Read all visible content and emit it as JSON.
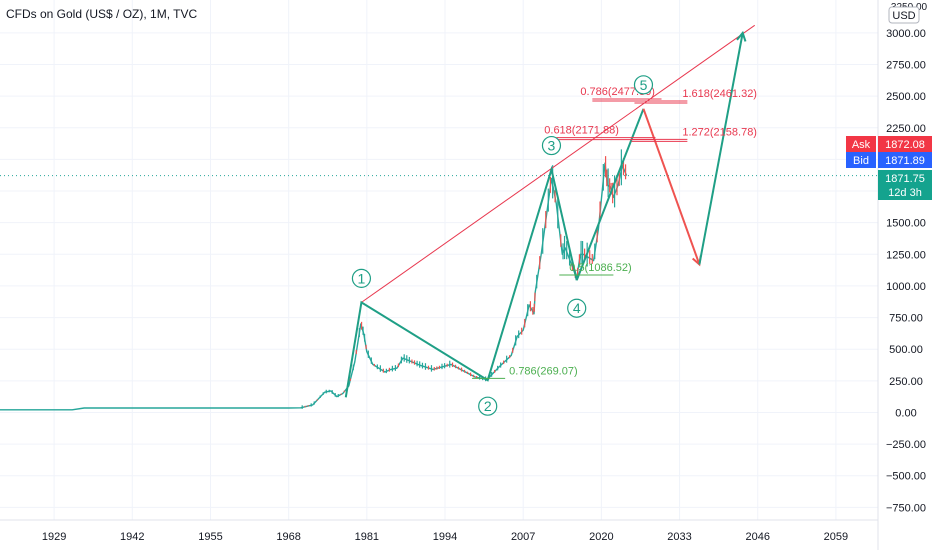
{
  "header": {
    "title": "CFDs on Gold (US$ / OZ), 1M, TVC",
    "currency": "USD",
    "top_tick": "3250.00"
  },
  "colors": {
    "up": "#26a69a",
    "down": "#ef5350",
    "wave_line": "#1f9f86",
    "fib_red": "#e8384f",
    "fib_green": "#4caf50",
    "ask_bg": "#f23645",
    "bid_bg": "#2962ff",
    "price_bg": "#14a38e",
    "axis_text": "#131722",
    "grid": "#f0f3fa"
  },
  "price_labels": {
    "ask_label": "Ask",
    "ask_value": "1872.08",
    "bid_label": "Bid",
    "bid_value": "1871.89",
    "last_value": "1871.75",
    "countdown": "12d 3h"
  },
  "chart_data": {
    "type": "line",
    "symbol": "CFDs on Gold (US$ / OZ)",
    "timeframe": "1M",
    "xlim": [
      1920,
      2066
    ],
    "ylim": [
      -850,
      3260
    ],
    "x_ticks": [
      "1929",
      "1942",
      "1955",
      "1968",
      "1981",
      "1994",
      "2007",
      "2020",
      "2033",
      "2046",
      "2059"
    ],
    "x_tick_values": [
      1929,
      1942,
      1955,
      1968,
      1981,
      1994,
      2007,
      2020,
      2033,
      2046,
      2059
    ],
    "y_ticks": [
      3000,
      2750,
      2500,
      2250,
      2000,
      1750,
      1500,
      1250,
      1000,
      750,
      500,
      250,
      0,
      -250,
      -500,
      -750
    ],
    "y_tick_labels": [
      "3000.00",
      "2750.00",
      "2500.00",
      "2250.00",
      "2000.00",
      "1750.00",
      "1500.00",
      "1250.00",
      "1000.00",
      "750.00",
      "500.00",
      "250.00",
      "0.00",
      "−250.00",
      "−500.00",
      "−750.00"
    ],
    "last_price": 1871.75,
    "price_series": {
      "x": [
        1920,
        1932,
        1934,
        1968,
        1970,
        1972,
        1974,
        1975,
        1976,
        1977,
        1978,
        1979,
        1980,
        1980.5,
        1981,
        1982,
        1984,
        1985,
        1986,
        1987,
        1990,
        1992,
        1995,
        1997,
        1999,
        2001,
        2003,
        2005,
        2006,
        2007,
        2008,
        2008.8,
        2009,
        2010,
        2011,
        2011.7,
        2012.5,
        2013.5,
        2014,
        2015.9,
        2016.5,
        2017,
        2018.7,
        2019.5,
        2020.6,
        2021,
        2021.5,
        2022,
        2022.8,
        2023.5,
        2024.2
      ],
      "y": [
        20.67,
        20.67,
        35,
        35,
        37,
        60,
        160,
        170,
        125,
        150,
        210,
        400,
        700,
        620,
        480,
        380,
        320,
        340,
        350,
        430,
        370,
        340,
        380,
        330,
        280,
        260,
        360,
        450,
        600,
        650,
        850,
        780,
        950,
        1250,
        1600,
        1850,
        1650,
        1250,
        1300,
        1060,
        1250,
        1250,
        1200,
        1450,
        1970,
        1800,
        1780,
        1700,
        1800,
        1950,
        1872
      ]
    },
    "wave_points": [
      {
        "label": "1",
        "x": 1980.1,
        "y": 870
      },
      {
        "label": "2",
        "x": 2001.1,
        "y": 255
      },
      {
        "label": "3",
        "x": 2011.7,
        "y": 1920
      },
      {
        "label": "4",
        "x": 2015.9,
        "y": 1045
      },
      {
        "label": "5",
        "x": 2027.0,
        "y": 2400
      }
    ],
    "wave_labels": [
      "1",
      "2",
      "3",
      "4",
      "5"
    ],
    "projection_path": {
      "x": [
        2015.9,
        2027.0,
        2036.3,
        2043.5
      ],
      "y": [
        1045,
        2400,
        1170,
        3000
      ]
    },
    "trend_line": {
      "x": [
        1980.1,
        2045.5
      ],
      "y": [
        870,
        3060
      ]
    },
    "fib_levels": [
      {
        "label": "0.786(2477.80)",
        "value": 2477.8,
        "x1": 2018.5,
        "x2": 2030.0,
        "side": "left",
        "color": "fib_red"
      },
      {
        "label": "1.618(2461.32)",
        "value": 2461.32,
        "x1": 2025.5,
        "x2": 2034.3,
        "side": "right",
        "color": "fib_red"
      },
      {
        "label": "0.618(2171.88)",
        "value": 2171.88,
        "x1": 2012.5,
        "x2": 2029.0,
        "side": "left",
        "color": "fib_red"
      },
      {
        "label": "1.272(2158.78)",
        "value": 2158.78,
        "x1": 2025.0,
        "x2": 2034.3,
        "side": "right",
        "color": "fib_red"
      },
      {
        "label": "0.5(1086.52)",
        "value": 1086.52,
        "x1": 2013.0,
        "x2": 2022.0,
        "side": "right",
        "color": "fib_green"
      },
      {
        "label": "0.786(269.07)",
        "value": 269.07,
        "x1": 1998.5,
        "x2": 2004.0,
        "side": "right",
        "color": "fib_green"
      }
    ]
  }
}
